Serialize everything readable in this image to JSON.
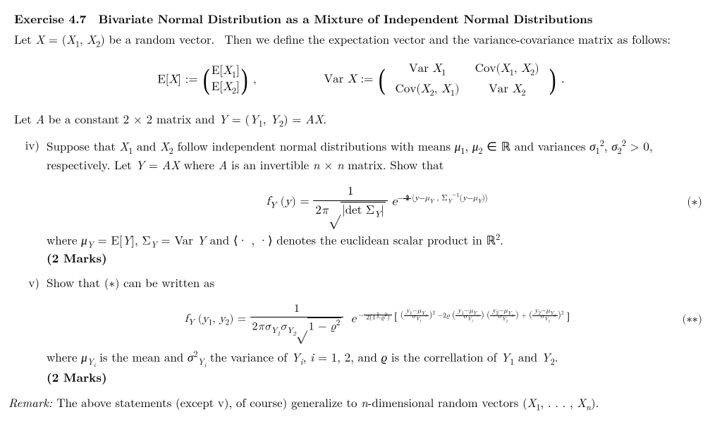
{
  "title": "Exercise 4.7 Bivariate Normal Distribution as a Mixture of Independent Normal Distributions",
  "intro1": "Let ",
  "intro_X": "X = (X₁, X₂)",
  "intro2": " be a random vector.  Then we define the expectation vector and the variance-covariance matrix as follows:",
  "EX_lhs": "E[X] :=",
  "EX_m11": "E[X₁]",
  "EX_m21": "E[X₂]",
  "VarX_lhs": "Var X :=",
  "V_m11": "Var X₁",
  "V_m12": "Cov(X₁, X₂)",
  "V_m21": "Cov(X₂, X₁)",
  "V_m22": "Var X₂",
  "letA": "Let A be a constant 2 × 2 matrix and Y = (Y₁, Y₂) = AX.",
  "iv_label": "iv)",
  "iv_text1": "Suppose that X₁ and X₂ follow independent normal distributions with means μ₁, μ₂ ∈ ℝ and variances σ₁², σ₂² > 0, respectively. Let Y = AX where A is an invertible n × n matrix. Show that",
  "fy_lhs": "f_Y (y) =",
  "fy_num": "1",
  "fy_den_2pi": "2π",
  "fy_den_det": "|det Σ_Y|",
  "fy_exp_pre": "e",
  "fy_exp": "−½ ⟨y − μ_Y , Σ_Y⁻¹(y − μ_Y)⟩",
  "tag_star": "(∗)",
  "iv_text2a": "where μ_Y = E[Y], Σ_Y = Var Y and ⟨· , ·⟩ denotes the euclidean scalar product in ℝ².",
  "iv_marks": "(2 Marks)",
  "v_label": "v)",
  "v_text1": "Show that (∗) can be written as",
  "fy2_lhs": "f_Y (y₁, y₂) =",
  "fy2_num": "1",
  "fy2_den": "2πσ_{Y₁}σ_{Y₂}√(1 − ϱ²)",
  "fy2_exp_pre": "e",
  "fy2_exp_outer": "− 1 / (2(1−ϱ²))",
  "fy2_exp_term1": "((y₁ − μ_{Y₁}) / σ_{Y₁})²",
  "fy2_exp_term2": "− 2ϱ ((y₁ − μ_{Y₁})/σ_{Y₁})((y₂ − μ_{Y₂})/σ_{Y₂})",
  "fy2_exp_term3": "+ ((y₂ − μ_{Y₂})/σ_{Y₂})²",
  "tag_dstar": "(∗∗)",
  "v_text2": "where μ_{Y_i} is the mean and σ²_{Y_i} the variance of Y_i, i = 1, 2, and ϱ is the correllation of Y₁ and Y₂.",
  "v_marks": "(2 Marks)",
  "remark": "Remark: The above statements (except v), of course) generalize to n-dimensional random vectors (X₁, . . . , X_n)."
}
